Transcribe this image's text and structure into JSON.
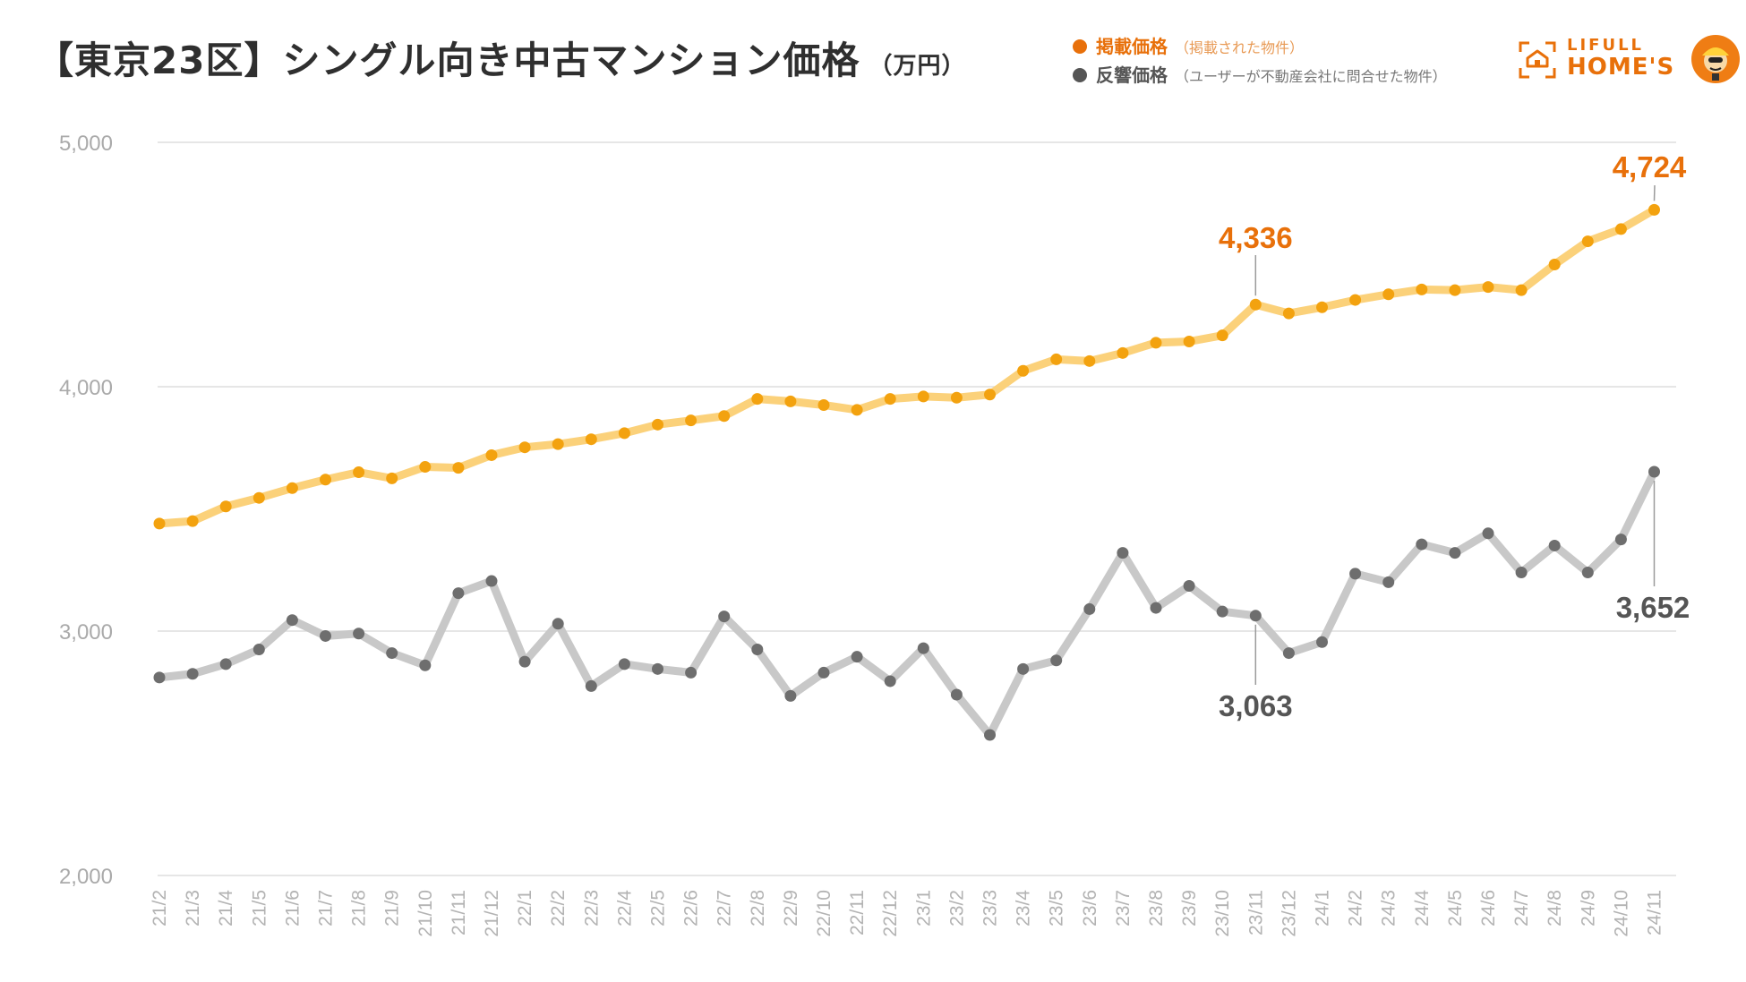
{
  "title": {
    "main": "【東京23区】シングル向き中古マンション価格",
    "unit": "（万円）"
  },
  "legend": [
    {
      "name": "掲載価格",
      "note": "（掲載された物件）",
      "color": "#e8700a"
    },
    {
      "name": "反響価格",
      "note": "（ユーザーが不動産会社に問合せた物件）",
      "color": "#555555"
    }
  ],
  "logo": {
    "line1": "LIFULL",
    "line2": "HOME'S",
    "icon": "house-icon",
    "mascot": "mascot-icon"
  },
  "chart_data": {
    "type": "line",
    "title": "【東京23区】シングル向き中古マンション価格",
    "ylabel": "（万円）",
    "xlabel": "",
    "ylim": [
      2000,
      5000
    ],
    "yticks": [
      {
        "value": 2000,
        "label": "2,000"
      },
      {
        "value": 3000,
        "label": "3,000"
      },
      {
        "value": 4000,
        "label": "4,000"
      },
      {
        "value": 5000,
        "label": "5,000"
      }
    ],
    "grid": true,
    "categories": [
      "21/2",
      "21/3",
      "21/4",
      "21/5",
      "21/6",
      "21/7",
      "21/8",
      "21/9",
      "21/10",
      "21/11",
      "21/12",
      "22/1",
      "22/2",
      "22/3",
      "22/4",
      "22/5",
      "22/6",
      "22/7",
      "22/8",
      "22/9",
      "22/10",
      "22/11",
      "22/12",
      "23/1",
      "23/2",
      "23/3",
      "23/4",
      "23/5",
      "23/6",
      "23/7",
      "23/8",
      "23/9",
      "23/10",
      "23/11",
      "23/12",
      "24/1",
      "24/2",
      "24/3",
      "24/4",
      "24/5",
      "24/6",
      "24/7",
      "24/8",
      "24/9",
      "24/10",
      "24/11"
    ],
    "series": [
      {
        "name": "掲載価格",
        "line_color": "#fbd17a",
        "point_color": "#f3a20f",
        "label_color": "#e8700a",
        "values": [
          3440,
          3450,
          3510,
          3545,
          3585,
          3620,
          3650,
          3625,
          3672,
          3668,
          3720,
          3752,
          3765,
          3785,
          3810,
          3845,
          3862,
          3880,
          3950,
          3940,
          3925,
          3905,
          3950,
          3960,
          3955,
          3968,
          4065,
          4112,
          4105,
          4138,
          4180,
          4185,
          4210,
          4336,
          4300,
          4325,
          4355,
          4378,
          4398,
          4395,
          4408,
          4395,
          4500,
          4595,
          4645,
          4724
        ],
        "annotations": [
          {
            "index": 33,
            "label": "4,336"
          },
          {
            "index": 45,
            "label": "4,724"
          }
        ]
      },
      {
        "name": "反響価格",
        "line_color": "#c8c8c8",
        "point_color": "#6e6e6e",
        "label_color": "#555555",
        "values": [
          2810,
          2825,
          2865,
          2925,
          3045,
          2980,
          2990,
          2910,
          2860,
          3155,
          3205,
          2875,
          3030,
          2775,
          2865,
          2845,
          2830,
          3060,
          2925,
          2735,
          2830,
          2895,
          2795,
          2930,
          2740,
          2575,
          2845,
          2880,
          3090,
          3320,
          3095,
          3185,
          3080,
          3063,
          2910,
          2955,
          3235,
          3200,
          3355,
          3320,
          3400,
          3240,
          3350,
          3240,
          3375,
          3652
        ],
        "annotations": [
          {
            "index": 33,
            "label": "3,063"
          },
          {
            "index": 45,
            "label": "3,652"
          }
        ]
      }
    ]
  }
}
